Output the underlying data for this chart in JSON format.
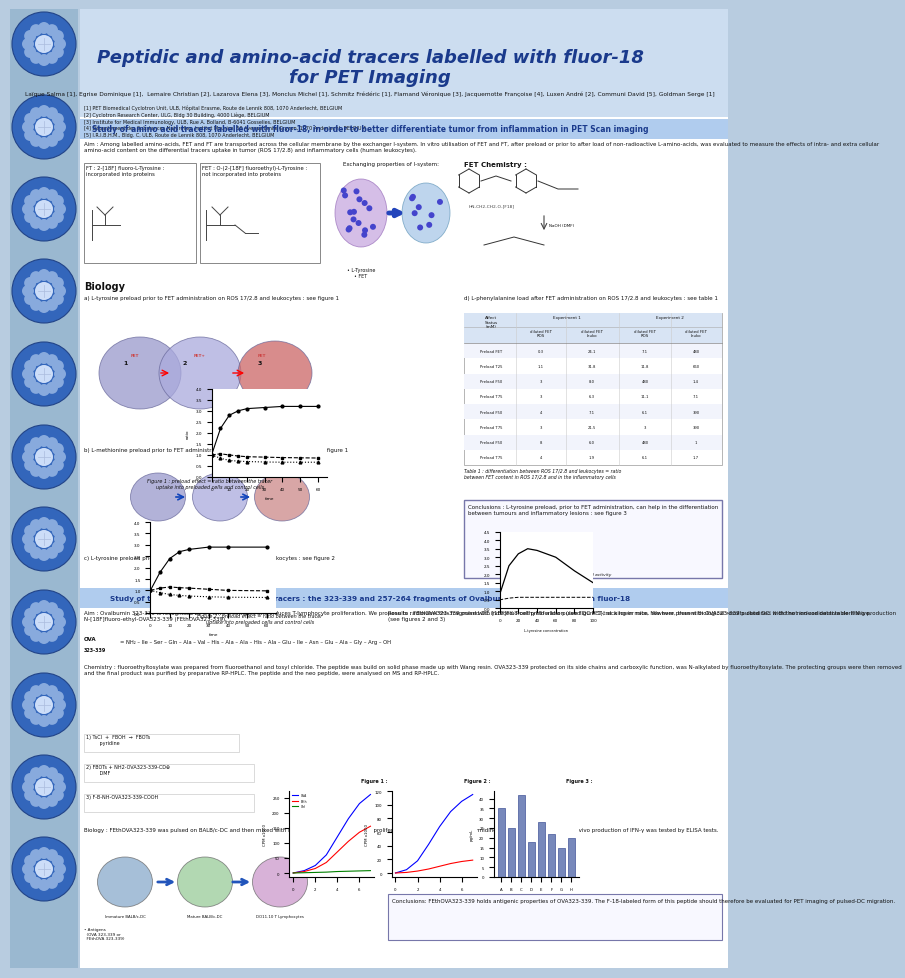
{
  "title_line1": "Peptidic and amino-acid tracers labelled with fluor-18",
  "title_line2": "for PET Imaging",
  "title_color": "#1a3a8c",
  "background_color": "#ffffff",
  "header_bg": "#ccddf0",
  "authors": "Laïque Salma [1], Egrise Dominique [1],  Lemaire Christian [2], Lazarova Elena [3], Monclus Michel [1], Schmitz Frédéric [1], Flamand Véronique [3], Jacquemotte Françoise [4], Luxen André [2], Communi David [5], Goldman Serge [1]",
  "affiliations": "[1] PET Biomedical Cyclotron Unit, ULB, Hôpital Erasme, Route de Lennik 808, 1070 Anderlecht, BELGIUM\n[2] Cyclotron Research Center, ULG, Bldg 30 Building, 4000 Liège, BELGIUM\n[3] Institute for Medical Immunology, ULB, Rue A. Bolland, B-6041 Gosselies, BELGIUM\n[4] Département des Substances Naturelles, Institut Maurice, 50 Avenue Emile Gryzon, 1070 Anderlecht, BELGIUM\n[5] I.R.I.B.H.M., Bldg. C, ULB, Route de Lennik 808, 1070 Anderlecht, BELGIUM",
  "section1_title": "Study of amino acid tracers labelled with fluor-18, in order to better differentiate tumor from inflammation in PET Scan imaging",
  "section1_bg": "#b0ccee",
  "section1_title_color": "#1a3a8c",
  "section2_title": "Study of the synthesis of new peptidic tracers : the 323-339 and 257-264 fragments of Ovalbumine, radiolabeled with fluor-18",
  "section2_bg": "#b0ccee",
  "section2_title_color": "#1a3a8c",
  "poster_bg": "#b8cce0",
  "left_strip_bg": "#a0b8d0",
  "aim_text_1": "Aim : Among labelled amino-acids, FET and FT are transported across the cellular membrane by the exchanger l-system. In vitro utilisation of FET and FT, after preload or prior to after load of non-radioactive L-amino-acids, was evaluated to measure the effects of intra- and extra cellular amino-acid content on the differential tracers uptake in tumor (ROS 17/2.8) and inflammatory cells (human leukocytes).",
  "biology_title": "Biology",
  "biology_a": "a) L-tyrosine preload prior to FET administration on ROS 17/2.8 and leukocytes : see figure 1",
  "biology_b": "b) L-methionine preload prior to FET administration on ROS 17/2.8 and leukocytes : see figure 1",
  "biology_c": "c) L-tyrosine preload prior to FT administration on ROS 17/2.8 and leukocytes : see figure 2",
  "biology_d": "d) L-phenylalanine load after FET administration on ROS 17/2.8 and leukocytes : see table 1",
  "fig1_caption": "Figure 1 : preload effect = ratio between the tracer\nuptake into preloaded cells and control cells",
  "fig2_caption": "Figure 2 : preload effect = ratio between the tracer\nuptake into preloaded cells and control cells",
  "fig3_caption": "Figure 3 : tracer uptake = % of loaded activity",
  "conclusions_1": "Conclusions : L-tyrosine preload, prior to FET administration, can help in the differentiation\nbetween tumours and inflammatory lesions : see figure 3",
  "aim2_text": "Aim : Ovalbumin 323-339 is recognised by DC MHC II complex and induces T-lymphocyte proliferation. We propose to radiolabel this fragment with [18F]Fluoroethyl to allow pulsed DC PET-tracking in mice. We here present biological results obtained with the non-radioactive derivative, N-[18F]fluoro-ethyl-OVA323-339 (FEthOVA323-339).",
  "ova_sequence": "= NH₂ – Ile – Ser – Gln – Ala – Val – His – Ala – Ala – His – Ala – Glu – Ile – Asn – Glu – Ala – Gly – Arg – OH",
  "chemistry_text": "Chemistry : fluoroethyltosylate was prepared from fluoroethanol and tosyl chloride. The peptide was build on solid phase made up with Wang resin. OVA323-339 protected on its side chains and carboxylic function, was N-alkylated by fluoroethyltosylate. The protecting groups were then removed and the final product was purified by preparative RP-HPLC. The peptide and the neo peptide, were analysed on MS and RP-HPLC.",
  "biology2_text": "Biology : FEthOVA323-339 was pulsed on BALB/c-DC and then mixed with DO11.10 T-lymphocytes. T-cell proliferation was measured by 3H thymidine incorporation. In vitro and in vivo production of IFN-γ was tested by ELISA tests.",
  "results_text": "Results : FEthOVA323-339 pulsed DC induced T-cell proliferation (see figure 1), at a lower rate, however, than with OVA323-339 pulsed DC. It did not induce detectable IFN-g production (see figures 2 and 3)",
  "conclusions_2": "Conclusions: FEthOVA323-339 holds antigenic properties of OVA323-339. The F-18-labeled form of this peptide should therefore be evaluated for PET imaging of pulsed-DC migration.",
  "pet_chemistry_label": "FET Chemistry :",
  "exchanging_label": "Exchanging properties of l-system:",
  "ft_label": "FT : 2-[18F] fluoro-L-Tyrosine :\nincorporated into proteins",
  "fet_label": "FET : O-(2-[18F] fluoroethyl)-L-Tyrosine :\nnot incorporated into proteins",
  "table1_title": "Table 1 : differentiation between ROS 17/2.8 and leukocytes = ratio\nbetween FET content in ROS 17/2.8 and in the inflammatory cells",
  "medallion_color_outer": "#3366bb",
  "medallion_color_inner": "#88aadd",
  "medallion_color_light": "#ccddf8",
  "strip_color": "#9ab8d0",
  "rxn1": "1) TsCl  +  FBOH  →  FBOTs\n         pyridine",
  "rxn2": "2) FBOTs + NH2-OVA323-339-CD⊕\n         DMF",
  "rxn3": "3) F-B-NH-OVA323-339-COOH"
}
